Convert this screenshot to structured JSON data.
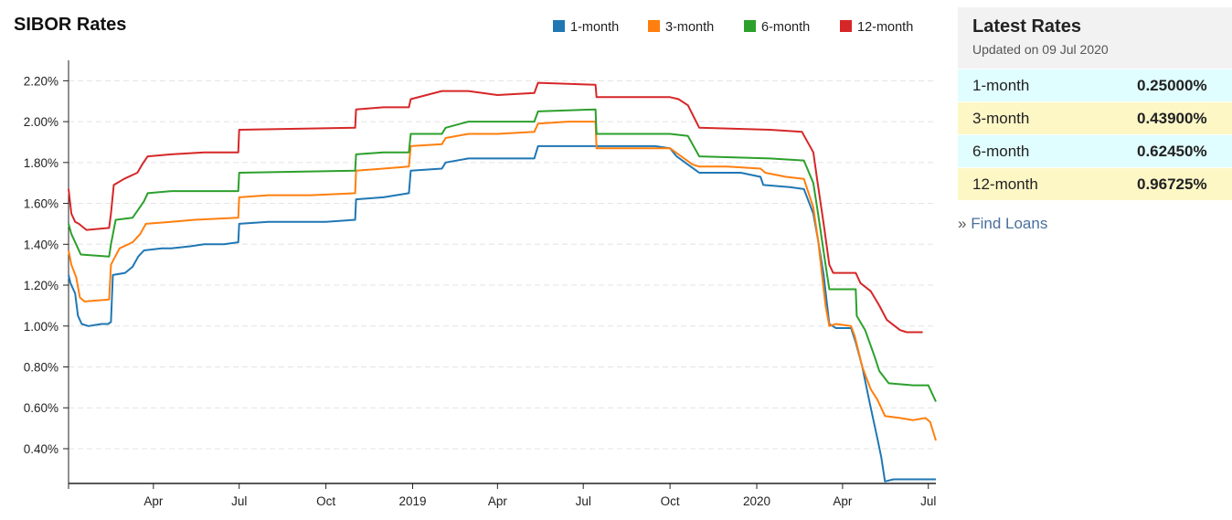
{
  "title": "SIBOR Rates",
  "panel": {
    "title": "Latest Rates",
    "updated": "Updated on 09 Jul 2020",
    "rows": [
      {
        "label": "1-month",
        "value": "0.25000%",
        "bg": "#e0fdff"
      },
      {
        "label": "3-month",
        "value": "0.43900%",
        "bg": "#fdf7c6"
      },
      {
        "label": "6-month",
        "value": "0.62450%",
        "bg": "#e0fdff"
      },
      {
        "label": "12-month",
        "value": "0.96725%",
        "bg": "#fdf7c6"
      }
    ],
    "link_prefix": "»",
    "link_label": "Find Loans"
  },
  "chart_data": {
    "type": "line",
    "title": "SIBOR Rates",
    "legend_position": "top-right",
    "grid": true,
    "x_domain": [
      "2018-01-01",
      "2020-07-09"
    ],
    "ylim": [
      0.23,
      2.3
    ],
    "y_ticks": [
      "0.40%",
      "0.60%",
      "0.80%",
      "1.00%",
      "1.20%",
      "1.40%",
      "1.60%",
      "1.80%",
      "2.00%",
      "2.20%"
    ],
    "y_tick_values": [
      0.4,
      0.6,
      0.8,
      1.0,
      1.2,
      1.4,
      1.6,
      1.8,
      2.0,
      2.2
    ],
    "x_ticks": [
      {
        "date": "2018-04-01",
        "label": "Apr"
      },
      {
        "date": "2018-07-01",
        "label": "Jul"
      },
      {
        "date": "2018-10-01",
        "label": "Oct"
      },
      {
        "date": "2019-01-01",
        "label": "2019"
      },
      {
        "date": "2019-04-01",
        "label": "Apr"
      },
      {
        "date": "2019-07-01",
        "label": "Jul"
      },
      {
        "date": "2019-10-01",
        "label": "Oct"
      },
      {
        "date": "2020-01-01",
        "label": "2020"
      },
      {
        "date": "2020-04-01",
        "label": "Apr"
      },
      {
        "date": "2020-07-01",
        "label": "Jul"
      }
    ],
    "series": [
      {
        "name": "1-month",
        "color": "#1f77b4",
        "points": [
          [
            "2018-01-01",
            1.25
          ],
          [
            "2018-01-03",
            1.21
          ],
          [
            "2018-01-08",
            1.16
          ],
          [
            "2018-01-11",
            1.05
          ],
          [
            "2018-01-15",
            1.01
          ],
          [
            "2018-01-22",
            1.0
          ],
          [
            "2018-02-05",
            1.01
          ],
          [
            "2018-02-12",
            1.01
          ],
          [
            "2018-02-15",
            1.02
          ],
          [
            "2018-02-17",
            1.25
          ],
          [
            "2018-03-02",
            1.26
          ],
          [
            "2018-03-10",
            1.29
          ],
          [
            "2018-03-16",
            1.34
          ],
          [
            "2018-03-22",
            1.37
          ],
          [
            "2018-04-10",
            1.38
          ],
          [
            "2018-04-20",
            1.38
          ],
          [
            "2018-05-10",
            1.39
          ],
          [
            "2018-05-25",
            1.4
          ],
          [
            "2018-06-15",
            1.4
          ],
          [
            "2018-06-30",
            1.41
          ],
          [
            "2018-07-01",
            1.5
          ],
          [
            "2018-08-01",
            1.51
          ],
          [
            "2018-09-01",
            1.51
          ],
          [
            "2018-10-01",
            1.51
          ],
          [
            "2018-11-01",
            1.52
          ],
          [
            "2018-11-02",
            1.62
          ],
          [
            "2018-12-01",
            1.63
          ],
          [
            "2018-12-28",
            1.65
          ],
          [
            "2018-12-30",
            1.76
          ],
          [
            "2019-02-01",
            1.77
          ],
          [
            "2019-02-05",
            1.8
          ],
          [
            "2019-03-01",
            1.82
          ],
          [
            "2019-04-01",
            1.82
          ],
          [
            "2019-05-10",
            1.82
          ],
          [
            "2019-05-14",
            1.88
          ],
          [
            "2019-06-15",
            1.88
          ],
          [
            "2019-07-15",
            1.88
          ],
          [
            "2019-08-30",
            1.88
          ],
          [
            "2019-09-15",
            1.88
          ],
          [
            "2019-10-01",
            1.87
          ],
          [
            "2019-10-08",
            1.83
          ],
          [
            "2019-10-20",
            1.79
          ],
          [
            "2019-11-01",
            1.75
          ],
          [
            "2019-11-20",
            1.75
          ],
          [
            "2019-12-15",
            1.75
          ],
          [
            "2020-01-05",
            1.73
          ],
          [
            "2020-01-08",
            1.69
          ],
          [
            "2020-02-05",
            1.68
          ],
          [
            "2020-02-20",
            1.67
          ],
          [
            "2020-03-01",
            1.55
          ],
          [
            "2020-03-06",
            1.42
          ],
          [
            "2020-03-12",
            1.25
          ],
          [
            "2020-03-18",
            1.01
          ],
          [
            "2020-03-25",
            0.99
          ],
          [
            "2020-04-10",
            0.99
          ],
          [
            "2020-04-15",
            0.92
          ],
          [
            "2020-04-22",
            0.8
          ],
          [
            "2020-04-30",
            0.62
          ],
          [
            "2020-05-08",
            0.45
          ],
          [
            "2020-05-12",
            0.36
          ],
          [
            "2020-05-16",
            0.24
          ],
          [
            "2020-05-25",
            0.25
          ],
          [
            "2020-06-15",
            0.25
          ],
          [
            "2020-07-09",
            0.25
          ]
        ]
      },
      {
        "name": "3-month",
        "color": "#ff7f0e",
        "points": [
          [
            "2018-01-01",
            1.37
          ],
          [
            "2018-01-04",
            1.3
          ],
          [
            "2018-01-09",
            1.24
          ],
          [
            "2018-01-13",
            1.14
          ],
          [
            "2018-01-18",
            1.12
          ],
          [
            "2018-02-13",
            1.13
          ],
          [
            "2018-02-15",
            1.3
          ],
          [
            "2018-02-24",
            1.38
          ],
          [
            "2018-03-10",
            1.41
          ],
          [
            "2018-03-18",
            1.45
          ],
          [
            "2018-03-24",
            1.5
          ],
          [
            "2018-04-20",
            1.51
          ],
          [
            "2018-05-15",
            1.52
          ],
          [
            "2018-06-30",
            1.53
          ],
          [
            "2018-07-01",
            1.63
          ],
          [
            "2018-08-01",
            1.64
          ],
          [
            "2018-09-15",
            1.64
          ],
          [
            "2018-11-01",
            1.65
          ],
          [
            "2018-11-02",
            1.76
          ],
          [
            "2018-12-01",
            1.77
          ],
          [
            "2018-12-28",
            1.78
          ],
          [
            "2018-12-30",
            1.88
          ],
          [
            "2019-02-01",
            1.89
          ],
          [
            "2019-02-05",
            1.92
          ],
          [
            "2019-03-01",
            1.94
          ],
          [
            "2019-04-01",
            1.94
          ],
          [
            "2019-05-10",
            1.95
          ],
          [
            "2019-05-14",
            1.99
          ],
          [
            "2019-06-15",
            2.0
          ],
          [
            "2019-07-14",
            2.0
          ],
          [
            "2019-07-15",
            1.87
          ],
          [
            "2019-09-01",
            1.87
          ],
          [
            "2019-10-01",
            1.87
          ],
          [
            "2019-10-10",
            1.84
          ],
          [
            "2019-10-25",
            1.79
          ],
          [
            "2019-11-01",
            1.78
          ],
          [
            "2019-12-01",
            1.78
          ],
          [
            "2020-01-05",
            1.77
          ],
          [
            "2020-01-10",
            1.75
          ],
          [
            "2020-02-01",
            1.73
          ],
          [
            "2020-02-20",
            1.72
          ],
          [
            "2020-03-01",
            1.58
          ],
          [
            "2020-03-06",
            1.42
          ],
          [
            "2020-03-14",
            1.1
          ],
          [
            "2020-03-18",
            1.0
          ],
          [
            "2020-03-25",
            1.01
          ],
          [
            "2020-04-10",
            1.0
          ],
          [
            "2020-04-14",
            0.95
          ],
          [
            "2020-04-22",
            0.8
          ],
          [
            "2020-05-01",
            0.69
          ],
          [
            "2020-05-08",
            0.64
          ],
          [
            "2020-05-16",
            0.56
          ],
          [
            "2020-06-01",
            0.55
          ],
          [
            "2020-06-15",
            0.54
          ],
          [
            "2020-06-28",
            0.55
          ],
          [
            "2020-07-03",
            0.53
          ],
          [
            "2020-07-09",
            0.44
          ]
        ]
      },
      {
        "name": "6-month",
        "color": "#2ca02c",
        "points": [
          [
            "2018-01-01",
            1.5
          ],
          [
            "2018-01-04",
            1.45
          ],
          [
            "2018-01-09",
            1.4
          ],
          [
            "2018-01-14",
            1.35
          ],
          [
            "2018-02-13",
            1.34
          ],
          [
            "2018-02-15",
            1.4
          ],
          [
            "2018-02-20",
            1.52
          ],
          [
            "2018-03-10",
            1.53
          ],
          [
            "2018-03-16",
            1.57
          ],
          [
            "2018-03-22",
            1.61
          ],
          [
            "2018-03-26",
            1.65
          ],
          [
            "2018-04-20",
            1.66
          ],
          [
            "2018-06-30",
            1.66
          ],
          [
            "2018-07-01",
            1.75
          ],
          [
            "2018-11-01",
            1.76
          ],
          [
            "2018-11-02",
            1.84
          ],
          [
            "2018-12-01",
            1.85
          ],
          [
            "2018-12-28",
            1.85
          ],
          [
            "2018-12-30",
            1.94
          ],
          [
            "2019-02-01",
            1.94
          ],
          [
            "2019-02-05",
            1.97
          ],
          [
            "2019-03-01",
            2.0
          ],
          [
            "2019-05-10",
            2.0
          ],
          [
            "2019-05-14",
            2.05
          ],
          [
            "2019-07-14",
            2.06
          ],
          [
            "2019-07-15",
            1.94
          ],
          [
            "2019-10-01",
            1.94
          ],
          [
            "2019-10-20",
            1.93
          ],
          [
            "2019-11-01",
            1.83
          ],
          [
            "2020-01-15",
            1.82
          ],
          [
            "2020-02-20",
            1.81
          ],
          [
            "2020-03-01",
            1.7
          ],
          [
            "2020-03-06",
            1.55
          ],
          [
            "2020-03-14",
            1.3
          ],
          [
            "2020-03-18",
            1.18
          ],
          [
            "2020-04-15",
            1.18
          ],
          [
            "2020-04-16",
            1.05
          ],
          [
            "2020-04-25",
            0.98
          ],
          [
            "2020-05-05",
            0.85
          ],
          [
            "2020-05-10",
            0.78
          ],
          [
            "2020-05-20",
            0.72
          ],
          [
            "2020-06-15",
            0.71
          ],
          [
            "2020-07-01",
            0.71
          ],
          [
            "2020-07-09",
            0.63
          ]
        ]
      },
      {
        "name": "12-month",
        "color": "#d62728",
        "points": [
          [
            "2018-01-01",
            1.67
          ],
          [
            "2018-01-04",
            1.55
          ],
          [
            "2018-01-08",
            1.51
          ],
          [
            "2018-01-12",
            1.5
          ],
          [
            "2018-01-20",
            1.47
          ],
          [
            "2018-02-13",
            1.48
          ],
          [
            "2018-02-15",
            1.55
          ],
          [
            "2018-02-18",
            1.69
          ],
          [
            "2018-03-01",
            1.72
          ],
          [
            "2018-03-15",
            1.75
          ],
          [
            "2018-03-20",
            1.79
          ],
          [
            "2018-03-26",
            1.83
          ],
          [
            "2018-04-20",
            1.84
          ],
          [
            "2018-05-25",
            1.85
          ],
          [
            "2018-06-30",
            1.85
          ],
          [
            "2018-07-01",
            1.96
          ],
          [
            "2018-11-01",
            1.97
          ],
          [
            "2018-11-02",
            2.06
          ],
          [
            "2018-12-01",
            2.07
          ],
          [
            "2018-12-28",
            2.07
          ],
          [
            "2018-12-30",
            2.11
          ],
          [
            "2019-02-01",
            2.15
          ],
          [
            "2019-03-01",
            2.15
          ],
          [
            "2019-04-01",
            2.13
          ],
          [
            "2019-05-10",
            2.14
          ],
          [
            "2019-05-14",
            2.19
          ],
          [
            "2019-07-14",
            2.18
          ],
          [
            "2019-07-15",
            2.12
          ],
          [
            "2019-10-01",
            2.12
          ],
          [
            "2019-10-10",
            2.11
          ],
          [
            "2019-10-20",
            2.08
          ],
          [
            "2019-11-01",
            1.97
          ],
          [
            "2020-01-15",
            1.96
          ],
          [
            "2020-02-18",
            1.95
          ],
          [
            "2020-03-01",
            1.85
          ],
          [
            "2020-03-05",
            1.72
          ],
          [
            "2020-03-12",
            1.5
          ],
          [
            "2020-03-18",
            1.3
          ],
          [
            "2020-03-22",
            1.26
          ],
          [
            "2020-04-15",
            1.26
          ],
          [
            "2020-04-20",
            1.21
          ],
          [
            "2020-05-01",
            1.17
          ],
          [
            "2020-05-10",
            1.1
          ],
          [
            "2020-05-18",
            1.03
          ],
          [
            "2020-06-01",
            0.98
          ],
          [
            "2020-06-08",
            0.97
          ],
          [
            "2020-06-25",
            0.97
          ]
        ]
      }
    ]
  }
}
